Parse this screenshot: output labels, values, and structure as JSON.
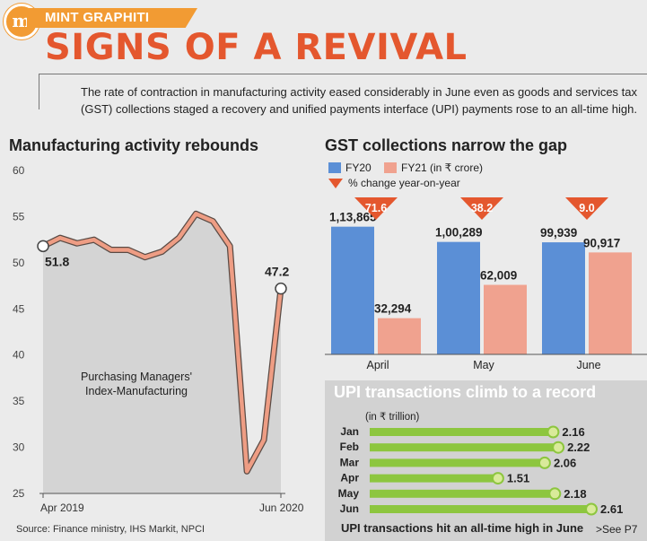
{
  "header": {
    "logo_letter": "m",
    "brand": "MINT GRAPHITI",
    "title": "SIGNS OF A REVIVAL",
    "description": "The rate of contraction in manufacturing activity eased considerably in June even as goods and services tax (GST) collections staged a recovery and unified payments interface (UPI) payments rose to an all-time high."
  },
  "colors": {
    "accent": "#e4572e",
    "brand": "#f29b33",
    "fy20": "#5b8fd6",
    "fy21": "#f0a28f",
    "upi_bar": "#8dc63f"
  },
  "chart_data": [
    {
      "type": "line",
      "title": "Manufacturing activity rebounds",
      "annotation": "Purchasing Managers' Index-Manufacturing",
      "ylim": [
        25,
        60
      ],
      "yticks": [
        25,
        30,
        35,
        40,
        45,
        50,
        55,
        60
      ],
      "xtick_labels": [
        "Apr 2019",
        "Jun 2020"
      ],
      "x": [
        "Apr 2019",
        "May 2019",
        "Jun 2019",
        "Jul 2019",
        "Aug 2019",
        "Sep 2019",
        "Oct 2019",
        "Nov 2019",
        "Dec 2019",
        "Jan 2020",
        "Feb 2020",
        "Mar 2020",
        "Apr 2020",
        "May 2020",
        "Jun 2020"
      ],
      "values": [
        51.8,
        52.7,
        52.1,
        52.5,
        51.4,
        51.4,
        50.6,
        51.2,
        52.7,
        55.3,
        54.5,
        51.8,
        27.4,
        30.8,
        47.2
      ],
      "labels": [
        {
          "index": 0,
          "text": "51.8"
        },
        {
          "index": 14,
          "text": "47.2"
        }
      ]
    },
    {
      "type": "bar",
      "title": "GST collections narrow the gap",
      "legend": [
        "FY20",
        "FY21 (in ₹ crore)",
        "% change year-on-year"
      ],
      "categories": [
        "April",
        "May",
        "June"
      ],
      "series": [
        {
          "name": "FY20",
          "values": [
            113865,
            100289,
            99939
          ],
          "labels": [
            "1,13,865",
            "1,00,289",
            "99,939"
          ]
        },
        {
          "name": "FY21",
          "values": [
            32294,
            62009,
            90917
          ],
          "labels": [
            "32,294",
            "62,009",
            "90,917"
          ]
        }
      ],
      "pct_change": [
        "71.6",
        "38.2",
        "9.0"
      ]
    },
    {
      "type": "bar",
      "title": "UPI transactions climb to a record",
      "unit_label": "(in ₹ trillion)",
      "categories": [
        "Jan",
        "Feb",
        "Mar",
        "Apr",
        "May",
        "Jun"
      ],
      "values": [
        2.16,
        2.22,
        2.06,
        1.51,
        2.18,
        2.61
      ],
      "labels": [
        "2.16",
        "2.22",
        "2.06",
        "1.51",
        "2.18",
        "2.61"
      ]
    }
  ],
  "footer": {
    "source": "Source: Finance ministry, IHS Markit, NPCI",
    "upi_note": "UPI transactions hit an all-time high in June",
    "see": ">See P7"
  }
}
